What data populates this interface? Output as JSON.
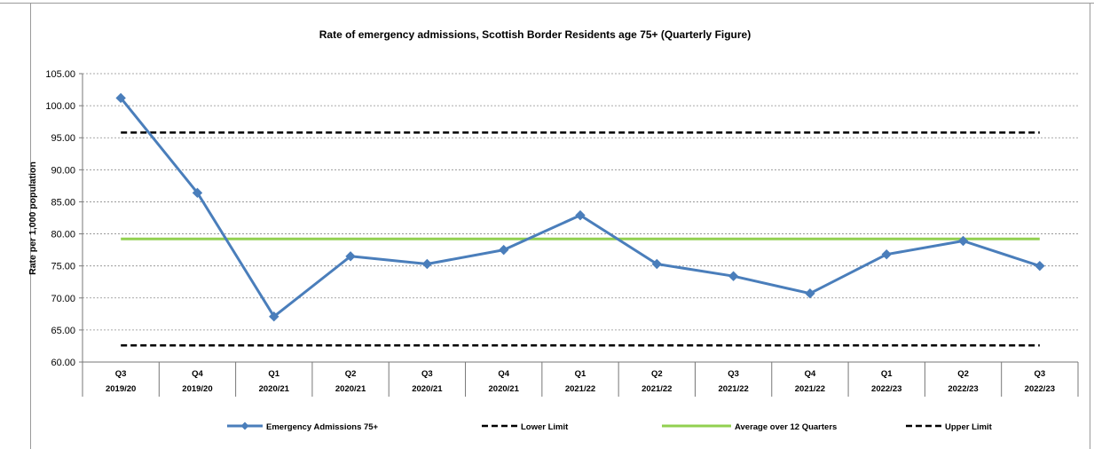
{
  "chart_data": {
    "type": "line",
    "title": "Rate of emergency admissions, Scottish Border Residents age 75+ (Quarterly Figure)",
    "ylabel": "Rate per 1,000 population",
    "xlabel": "",
    "ylim": [
      60,
      105
    ],
    "yticks": [
      "60.00",
      "65.00",
      "70.00",
      "75.00",
      "80.00",
      "85.00",
      "90.00",
      "95.00",
      "100.00",
      "105.00"
    ],
    "grid": true,
    "legend_position": "bottom",
    "categories": [
      {
        "quarter": "Q3",
        "year": "2019/20"
      },
      {
        "quarter": "Q4",
        "year": "2019/20"
      },
      {
        "quarter": "Q1",
        "year": "2020/21"
      },
      {
        "quarter": "Q2",
        "year": "2020/21"
      },
      {
        "quarter": "Q3",
        "year": "2020/21"
      },
      {
        "quarter": "Q4",
        "year": "2020/21"
      },
      {
        "quarter": "Q1",
        "year": "2021/22"
      },
      {
        "quarter": "Q2",
        "year": "2021/22"
      },
      {
        "quarter": "Q3",
        "year": "2021/22"
      },
      {
        "quarter": "Q4",
        "year": "2021/22"
      },
      {
        "quarter": "Q1",
        "year": "2022/23"
      },
      {
        "quarter": "Q2",
        "year": "2022/23"
      },
      {
        "quarter": "Q3",
        "year": "2022/23"
      }
    ],
    "series": [
      {
        "name": "Emergency Admissions 75+",
        "color": "#4a7ebb",
        "style": "solid-markers",
        "values": [
          101.2,
          86.4,
          67.1,
          76.5,
          75.3,
          77.5,
          82.9,
          75.3,
          73.4,
          70.7,
          76.8,
          78.9,
          75.0
        ]
      },
      {
        "name": "Lower Limit",
        "color": "#000000",
        "style": "dashed",
        "values": [
          62.6,
          62.6,
          62.6,
          62.6,
          62.6,
          62.6,
          62.6,
          62.6,
          62.6,
          62.6,
          62.6,
          62.6,
          62.6
        ]
      },
      {
        "name": "Average over 12 Quarters",
        "color": "#92d050",
        "style": "solid",
        "values": [
          79.2,
          79.2,
          79.2,
          79.2,
          79.2,
          79.2,
          79.2,
          79.2,
          79.2,
          79.2,
          79.2,
          79.2,
          79.2
        ]
      },
      {
        "name": "Upper Limit",
        "color": "#000000",
        "style": "dashed",
        "values": [
          95.8,
          95.8,
          95.8,
          95.8,
          95.8,
          95.8,
          95.8,
          95.8,
          95.8,
          95.8,
          95.8,
          95.8,
          95.8
        ]
      }
    ]
  }
}
